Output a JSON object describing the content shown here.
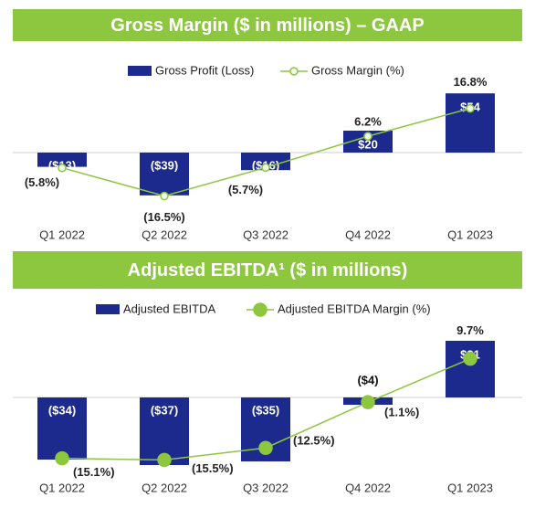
{
  "chart_data": [
    {
      "type": "combo",
      "title": "Gross Margin ($ in millions) – GAAP",
      "categories": [
        "Q1 2022",
        "Q2 2022",
        "Q3 2022",
        "Q4 2022",
        "Q1 2023"
      ],
      "ylim": [
        -48,
        60
      ],
      "y2lim": [
        -20,
        25
      ],
      "series": [
        {
          "name": "Gross Profit (Loss)",
          "type": "bar",
          "color": "#1b2a8c",
          "values": [
            -13,
            -39,
            -16,
            20,
            54
          ],
          "value_labels": [
            "($13)",
            "($39)",
            "($16)",
            "$20",
            "$54"
          ]
        },
        {
          "name": "Gross Margin (%)",
          "type": "line",
          "axis": "y2",
          "color": "#8dc63f",
          "values": [
            -5.8,
            -16.5,
            -5.7,
            6.2,
            16.8
          ],
          "value_labels": [
            "(5.8%)",
            "(16.5%)",
            "(5.7%)",
            "6.2%",
            "16.8%"
          ]
        }
      ]
    },
    {
      "type": "combo",
      "title": "Adjusted EBITDA¹ ($ in millions)",
      "categories": [
        "Q1 2022",
        "Q2 2022",
        "Q3 2022",
        "Q4 2022",
        "Q1 2023"
      ],
      "ylim": [
        -37.5,
        35
      ],
      "y2lim": [
        -17,
        16
      ],
      "series": [
        {
          "name": "Adjusted EBITDA",
          "type": "bar",
          "color": "#1b2a8c",
          "values": [
            -34,
            -37,
            -35,
            -4,
            31
          ],
          "value_labels": [
            "($34)",
            "($37)",
            "($35)",
            "($4)",
            "$31"
          ]
        },
        {
          "name": "Adjusted EBITDA Margin (%)",
          "type": "line",
          "axis": "y2",
          "color": "#8dc63f",
          "values": [
            -15.1,
            -15.5,
            -12.5,
            -1.1,
            9.7
          ],
          "value_labels": [
            "(15.1%)",
            "(15.5%)",
            "(12.5%)",
            "(1.1%)",
            "9.7%"
          ]
        }
      ]
    }
  ]
}
